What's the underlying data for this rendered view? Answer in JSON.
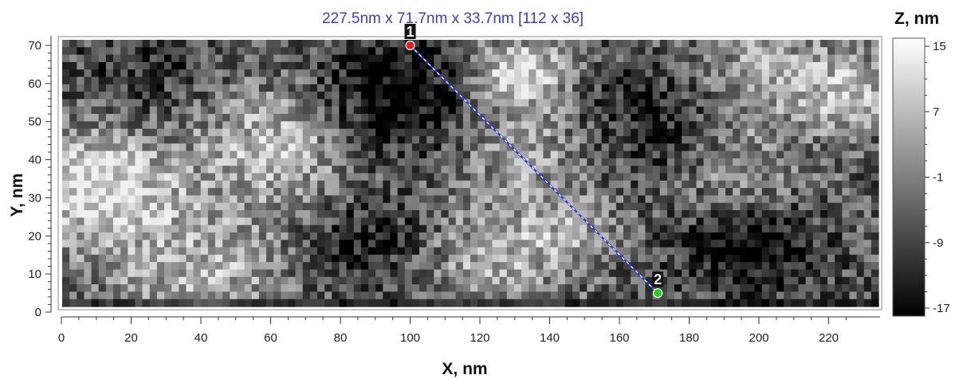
{
  "chart_data": {
    "type": "heatmap",
    "title": "227.5nm x 71.7nm x 33.7nm [112 x 36]",
    "xlabel": "X, nm",
    "ylabel": "Y, nm",
    "colorbar_label": "Z, nm",
    "xlim": [
      0,
      227.5
    ],
    "ylim": [
      0,
      71.7
    ],
    "zlim": [
      -17,
      15
    ],
    "grid_size": [
      112,
      36
    ],
    "x_ticks": [
      "0",
      "20",
      "40",
      "60",
      "80",
      "100",
      "120",
      "140",
      "160",
      "180",
      "200",
      "220"
    ],
    "y_ticks": [
      "0",
      "10",
      "20",
      "30",
      "40",
      "50",
      "60",
      "70"
    ],
    "colorbar_ticks": [
      "15",
      "7",
      "-1",
      "-9",
      "-17"
    ],
    "colormap": [
      "#000000",
      "#ffffff"
    ],
    "profile_line": {
      "color": "#3c3cc8",
      "points": [
        {
          "label": "1",
          "x": 100,
          "y": 70,
          "color": "#e02020"
        },
        {
          "label": "2",
          "x": 171,
          "y": 5,
          "color": "#20d020"
        }
      ]
    }
  }
}
